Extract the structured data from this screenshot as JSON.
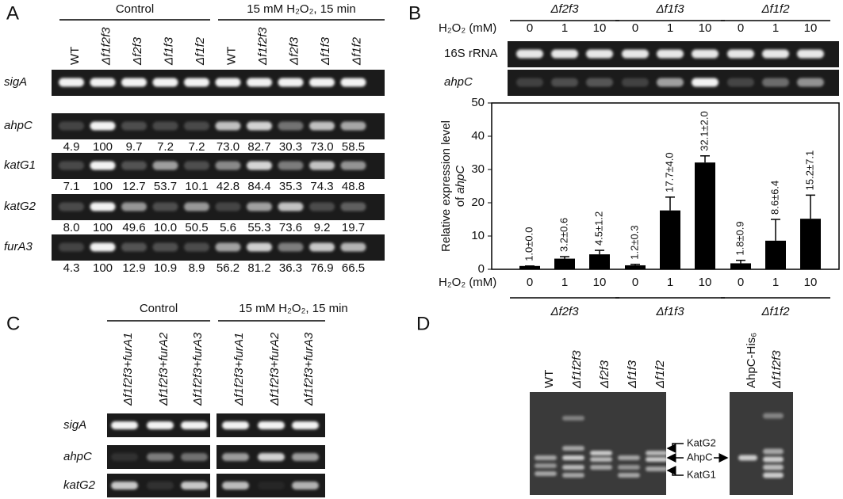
{
  "panel_a": {
    "label": "A",
    "groups": [
      "Control",
      "15 mM H₂O₂, 15 min"
    ],
    "lanes": [
      "WT",
      "Δf1f2f3",
      "Δf2f3",
      "Δf1f3",
      "Δf1f2",
      "WT",
      "Δf1f2f3",
      "Δf2f3",
      "Δf1f3",
      "Δf1f2"
    ],
    "rows": [
      {
        "name": "sigA"
      },
      {
        "name": "ahpC",
        "values": [
          "4.9",
          "100",
          "9.7",
          "7.2",
          "7.2",
          "73.0",
          "82.7",
          "30.3",
          "73.0",
          "58.5"
        ]
      },
      {
        "name": "katG1",
        "values": [
          "7.1",
          "100",
          "12.7",
          "53.7",
          "10.1",
          "42.8",
          "84.4",
          "35.3",
          "74.3",
          "48.8"
        ]
      },
      {
        "name": "katG2",
        "values": [
          "8.0",
          "100",
          "49.6",
          "10.0",
          "50.5",
          "5.6",
          "55.3",
          "73.6",
          "9.2",
          "19.7"
        ]
      },
      {
        "name": "furA3",
        "values": [
          "4.3",
          "100",
          "12.9",
          "10.9",
          "8.9",
          "56.2",
          "81.2",
          "36.3",
          "76.9",
          "66.5"
        ]
      }
    ]
  },
  "chart_data": {
    "type": "bar",
    "panel_label": "B",
    "xlabel": "H₂O₂ (mM)",
    "groups": [
      "Δf2f3",
      "Δf1f3",
      "Δf1f2"
    ],
    "categories": [
      "0",
      "1",
      "10",
      "0",
      "1",
      "10",
      "0",
      "1",
      "10"
    ],
    "gel_rows": [
      "16S rRNA",
      "ahpC"
    ],
    "ylabel": [
      "Relative expression level",
      "of",
      "ahpC"
    ],
    "values": [
      1.0,
      3.2,
      4.5,
      1.2,
      17.7,
      32.1,
      1.8,
      8.6,
      15.2
    ],
    "errors": [
      0.0,
      0.6,
      1.2,
      0.3,
      4.0,
      2.0,
      0.9,
      6.4,
      7.1
    ],
    "value_labels": [
      "1.0±0.0",
      "3.2±0.6",
      "4.5±1.2",
      "1.2±0.3",
      "17.7±4.0",
      "32.1±2.0",
      "1.8±0.9",
      "8.6±6.4",
      "15.2±7.1"
    ],
    "color": "#000000",
    "ylim": [
      0,
      50
    ],
    "yticks": [
      0,
      10,
      20,
      30,
      40,
      50
    ]
  },
  "panel_c": {
    "label": "C",
    "groups": [
      "Control",
      "15 mM H₂O₂, 15 min"
    ],
    "lanes": [
      "Δf1f2f3+furA1",
      "Δf1f2f3+furA2",
      "Δf1f2f3+furA3",
      "Δf1f2f3+furA1",
      "Δf1f2f3+furA2",
      "Δf1f2f3+furA3"
    ],
    "rows": [
      "sigA",
      "ahpC",
      "katG2"
    ]
  },
  "panel_d": {
    "label": "D",
    "lanes": [
      "WT",
      "Δf1f2f3",
      "Δf2f3",
      "Δf1f3",
      "Δf1f2"
    ],
    "lanes_2": [
      "AhpC-His₆",
      "Δf1f2f3"
    ],
    "markers": [
      "KatG2",
      "AhpC",
      "KatG1"
    ]
  }
}
